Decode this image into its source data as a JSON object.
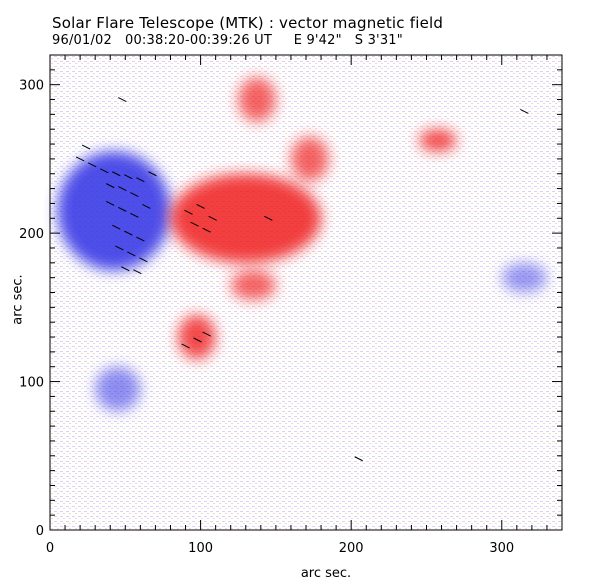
{
  "chart_data": {
    "type": "heatmap",
    "title": "Solar Flare Telescope (MTK) : vector magnetic field",
    "subtitle": "96/01/02   00:38:20-00:39:26 UT     E 9'42\"   S 3'31\"",
    "xlabel": "arc sec.",
    "ylabel": "arc sec.",
    "xlim": [
      0,
      340
    ],
    "ylim": [
      0,
      320
    ],
    "x_ticks": [
      0,
      100,
      200,
      300
    ],
    "y_ticks": [
      0,
      100,
      200,
      300
    ],
    "x_tick_labels": [
      "0",
      "100",
      "200",
      "300"
    ],
    "y_tick_labels": [
      "0",
      "100",
      "200",
      "300"
    ],
    "colors": {
      "negative_polarity": "#3a3ae6",
      "positive_polarity": "#f01a1a",
      "background": "#ffffff"
    },
    "regions": [
      {
        "polarity": "negative",
        "x": [
          5,
          80
        ],
        "y": [
          175,
          255
        ],
        "strength": 1.0
      },
      {
        "polarity": "negative",
        "x": [
          30,
          60
        ],
        "y": [
          80,
          110
        ],
        "strength": 0.4
      },
      {
        "polarity": "negative",
        "x": [
          300,
          330
        ],
        "y": [
          160,
          180
        ],
        "strength": 0.3
      },
      {
        "polarity": "positive",
        "x": [
          80,
          180
        ],
        "y": [
          180,
          240
        ],
        "strength": 0.9
      },
      {
        "polarity": "positive",
        "x": [
          85,
          110
        ],
        "y": [
          115,
          145
        ],
        "strength": 0.8
      },
      {
        "polarity": "positive",
        "x": [
          245,
          270
        ],
        "y": [
          255,
          270
        ],
        "strength": 0.8
      },
      {
        "polarity": "positive",
        "x": [
          125,
          150
        ],
        "y": [
          275,
          305
        ],
        "strength": 0.6
      },
      {
        "polarity": "positive",
        "x": [
          160,
          185
        ],
        "y": [
          235,
          265
        ],
        "strength": 0.6
      },
      {
        "polarity": "positive",
        "x": [
          120,
          150
        ],
        "y": [
          155,
          175
        ],
        "strength": 0.6
      }
    ],
    "vectors": [
      {
        "x": 20,
        "y": 250
      },
      {
        "x": 28,
        "y": 246
      },
      {
        "x": 36,
        "y": 242
      },
      {
        "x": 44,
        "y": 240
      },
      {
        "x": 52,
        "y": 238
      },
      {
        "x": 60,
        "y": 236
      },
      {
        "x": 68,
        "y": 240
      },
      {
        "x": 40,
        "y": 232
      },
      {
        "x": 48,
        "y": 230
      },
      {
        "x": 56,
        "y": 226
      },
      {
        "x": 40,
        "y": 220
      },
      {
        "x": 48,
        "y": 216
      },
      {
        "x": 56,
        "y": 212
      },
      {
        "x": 44,
        "y": 204
      },
      {
        "x": 52,
        "y": 200
      },
      {
        "x": 60,
        "y": 196
      },
      {
        "x": 46,
        "y": 190
      },
      {
        "x": 54,
        "y": 186
      },
      {
        "x": 62,
        "y": 182
      },
      {
        "x": 50,
        "y": 176
      },
      {
        "x": 58,
        "y": 174
      },
      {
        "x": 92,
        "y": 214
      },
      {
        "x": 100,
        "y": 218
      },
      {
        "x": 108,
        "y": 210
      },
      {
        "x": 96,
        "y": 206
      },
      {
        "x": 104,
        "y": 202
      },
      {
        "x": 90,
        "y": 124
      },
      {
        "x": 98,
        "y": 128
      },
      {
        "x": 104,
        "y": 132
      },
      {
        "x": 145,
        "y": 210
      },
      {
        "x": 48,
        "y": 290
      },
      {
        "x": 315,
        "y": 282
      },
      {
        "x": 205,
        "y": 48
      },
      {
        "x": 24,
        "y": 258
      },
      {
        "x": 64,
        "y": 218
      }
    ]
  }
}
